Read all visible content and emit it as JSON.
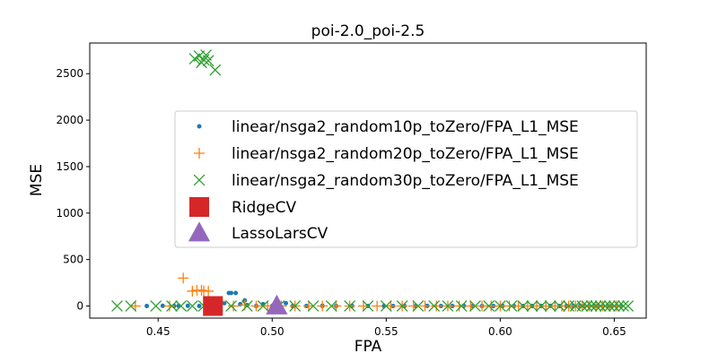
{
  "chart_data": {
    "type": "scatter",
    "title": "poi-2.0_poi-2.5",
    "xlabel": "FPA",
    "ylabel": "MSE",
    "xlim": [
      0.42,
      0.664
    ],
    "ylim": [
      -130,
      2830
    ],
    "xticks": [
      0.45,
      0.5,
      0.55,
      0.6,
      0.65
    ],
    "xtick_labels": [
      "0.45",
      "0.50",
      "0.55",
      "0.60",
      "0.65"
    ],
    "yticks": [
      0,
      500,
      1000,
      1500,
      2000,
      2500
    ],
    "ytick_labels": [
      "0",
      "500",
      "1000",
      "1500",
      "2000",
      "2500"
    ],
    "grid": false,
    "legend_position": "center-right",
    "series": [
      {
        "name": "linear/nsga2_random10p_toZero/FPA_L1_MSE",
        "marker": "dot",
        "color": "#1f77b4",
        "x": [
          0.445,
          0.452,
          0.457,
          0.459,
          0.463,
          0.468,
          0.473,
          0.476,
          0.479,
          0.481,
          0.482,
          0.484,
          0.486,
          0.488,
          0.489,
          0.493,
          0.496,
          0.5,
          0.503,
          0.506,
          0.509,
          0.515,
          0.522,
          0.528,
          0.535,
          0.542,
          0.549,
          0.553,
          0.558,
          0.563,
          0.568,
          0.574,
          0.579,
          0.584,
          0.588,
          0.592,
          0.597,
          0.601,
          0.606,
          0.61,
          0.614,
          0.618,
          0.622,
          0.626,
          0.629,
          0.632,
          0.635,
          0.637,
          0.639,
          0.641,
          0.643,
          0.645,
          0.647,
          0.649,
          0.651,
          0.653
        ],
        "y": [
          0,
          2,
          0,
          1,
          3,
          0,
          2,
          60,
          30,
          140,
          140,
          140,
          20,
          60,
          10,
          0,
          20,
          0,
          20,
          30,
          0,
          0,
          2,
          0,
          1,
          0,
          0,
          0,
          0,
          0,
          1,
          0,
          0,
          2,
          0,
          0,
          0,
          1,
          0,
          0,
          0,
          0,
          1,
          0,
          0,
          0,
          0,
          0,
          0,
          0,
          0,
          0,
          0,
          0,
          0,
          0
        ]
      },
      {
        "name": "linear/nsga2_random20p_toZero/FPA_L1_MSE",
        "marker": "plus",
        "color": "#ff7f0e",
        "x": [
          0.44,
          0.455,
          0.461,
          0.465,
          0.467,
          0.469,
          0.47,
          0.472,
          0.474,
          0.478,
          0.483,
          0.488,
          0.493,
          0.498,
          0.504,
          0.51,
          0.516,
          0.522,
          0.528,
          0.534,
          0.54,
          0.546,
          0.552,
          0.557,
          0.562,
          0.567,
          0.572,
          0.577,
          0.582,
          0.587,
          0.592,
          0.596,
          0.6,
          0.604,
          0.608,
          0.612,
          0.616,
          0.62,
          0.624,
          0.627,
          0.63,
          0.633,
          0.636,
          0.639,
          0.642,
          0.645,
          0.648,
          0.651
        ],
        "y": [
          0,
          0,
          300,
          160,
          170,
          170,
          160,
          160,
          20,
          50,
          0,
          10,
          0,
          0,
          0,
          0,
          0,
          0,
          0,
          0,
          0,
          0,
          0,
          0,
          0,
          0,
          0,
          0,
          0,
          0,
          0,
          0,
          0,
          0,
          0,
          0,
          0,
          0,
          0,
          0,
          0,
          0,
          0,
          0,
          0,
          0,
          0,
          0
        ]
      },
      {
        "name": "linear/nsga2_random30p_toZero/FPA_L1_MSE",
        "marker": "x",
        "color": "#2ca02c",
        "x": [
          0.432,
          0.438,
          0.449,
          0.456,
          0.466,
          0.468,
          0.469,
          0.47,
          0.471,
          0.472,
          0.475,
          0.46,
          0.465,
          0.47,
          0.476,
          0.482,
          0.489,
          0.496,
          0.503,
          0.51,
          0.518,
          0.526,
          0.534,
          0.542,
          0.55,
          0.557,
          0.564,
          0.571,
          0.577,
          0.583,
          0.589,
          0.595,
          0.6,
          0.605,
          0.61,
          0.614,
          0.618,
          0.622,
          0.626,
          0.63,
          0.633,
          0.636,
          0.638,
          0.64,
          0.642,
          0.644,
          0.646,
          0.648,
          0.65,
          0.652,
          0.654,
          0.656
        ],
        "y": [
          0,
          0,
          0,
          0,
          2660,
          2690,
          2620,
          2650,
          2700,
          2640,
          2540,
          0,
          0,
          0,
          0,
          0,
          0,
          0,
          0,
          0,
          0,
          0,
          0,
          0,
          0,
          0,
          0,
          0,
          0,
          0,
          0,
          0,
          0,
          0,
          0,
          0,
          0,
          0,
          0,
          0,
          0,
          0,
          0,
          0,
          0,
          0,
          0,
          0,
          0,
          0,
          0,
          0
        ]
      },
      {
        "name": "RidgeCV",
        "marker": "square",
        "color": "#d62728",
        "x": [
          0.474
        ],
        "y": [
          0
        ]
      },
      {
        "name": "LassoLarsCV",
        "marker": "triangle",
        "color": "#9467bd",
        "x": [
          0.502
        ],
        "y": [
          0
        ]
      }
    ]
  }
}
